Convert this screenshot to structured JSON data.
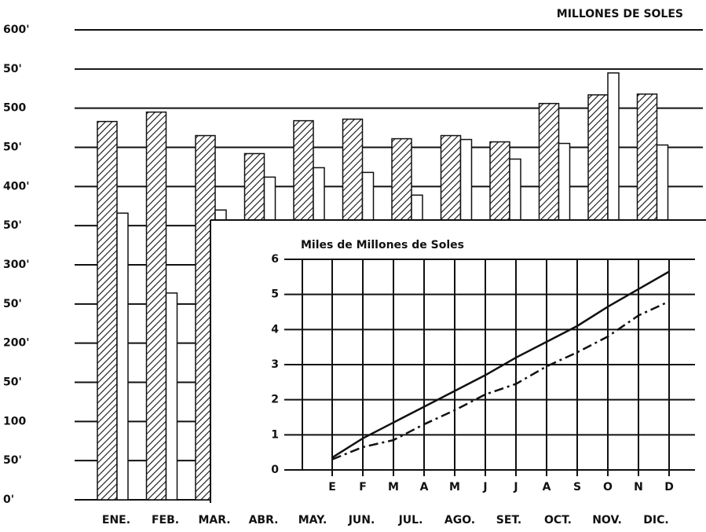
{
  "chart_data": [
    {
      "type": "bar",
      "annotation": "MILLONES DE SOLES",
      "categories": [
        "ENE.",
        "FEB.",
        "MAR.",
        "ABR.",
        "MAY.",
        "JUN.",
        "JUL.",
        "AGO.",
        "SET.",
        "OCT.",
        "NOV.",
        "DIC."
      ],
      "series": [
        {
          "color": "hatched",
          "values": [
            483,
            495,
            465,
            442,
            484,
            486,
            461,
            465,
            457,
            506,
            517,
            518
          ]
        },
        {
          "color": "#ffffff",
          "values": [
            366,
            264,
            370,
            412,
            424,
            418,
            389,
            460,
            435,
            455,
            545,
            453
          ]
        }
      ],
      "ylim": [
        0,
        600
      ],
      "yticks": [
        {
          "value": 0,
          "label": "0'"
        },
        {
          "value": 50,
          "label": "50'"
        },
        100,
        {
          "value": 150,
          "label": "50'"
        },
        {
          "value": 200,
          "label": "200'"
        },
        {
          "value": 250,
          "label": "50'"
        },
        {
          "value": 300,
          "label": "300'"
        },
        {
          "value": 350,
          "label": "50'"
        },
        {
          "value": 400,
          "label": "400'"
        },
        {
          "value": 450,
          "label": "50'"
        },
        500,
        {
          "value": 550,
          "label": "50'"
        },
        {
          "value": 600,
          "label": "600'"
        }
      ],
      "grid": true
    },
    {
      "type": "line",
      "title": "Miles de Millones de Soles",
      "categories": [
        "E",
        "F",
        "M",
        "A",
        "M",
        "J",
        "J",
        "A",
        "S",
        "O",
        "N",
        "D"
      ],
      "series": [
        {
          "color": "#111111",
          "style": "solid",
          "values": [
            0.35,
            0.9,
            1.35,
            1.8,
            2.25,
            2.7,
            3.2,
            3.65,
            4.1,
            4.65,
            5.15,
            5.65
          ]
        },
        {
          "color": "#111111",
          "style": "dashed",
          "values": [
            0.3,
            0.65,
            0.85,
            1.3,
            1.7,
            2.15,
            2.45,
            2.95,
            3.35,
            3.8,
            4.4,
            4.8
          ]
        }
      ],
      "ylim": [
        0,
        6
      ],
      "yticks": [
        0,
        1,
        2,
        3,
        4,
        5,
        6
      ],
      "grid": true
    }
  ]
}
